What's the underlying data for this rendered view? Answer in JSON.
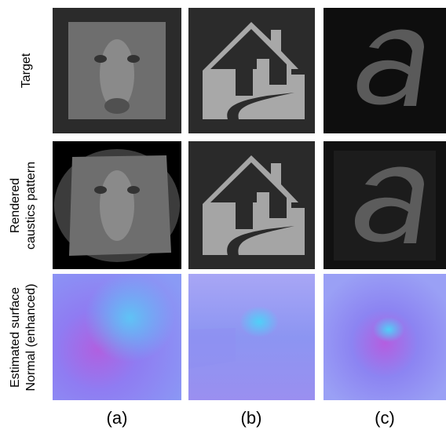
{
  "figure": {
    "row_labels": [
      {
        "lines": [
          "Target"
        ]
      },
      {
        "lines": [
          "Rendered",
          "caustics pattern"
        ]
      },
      {
        "lines": [
          "Estimated surface",
          "Normal (enhanced)"
        ]
      }
    ],
    "column_labels": [
      "(a)",
      "(b)",
      "(c)"
    ]
  }
}
